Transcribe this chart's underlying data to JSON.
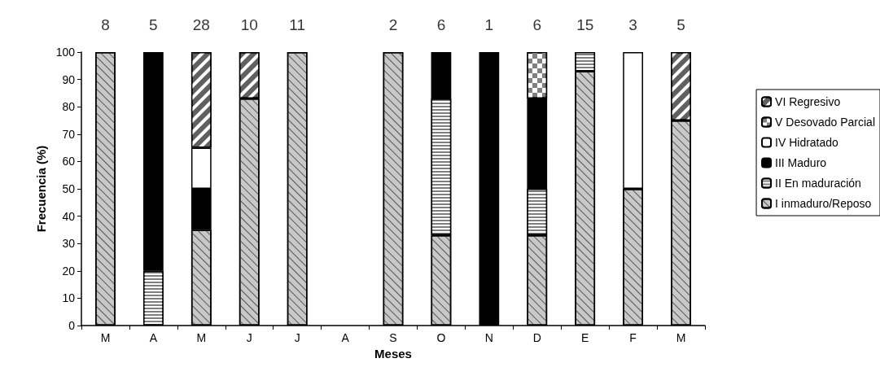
{
  "chart_data": {
    "type": "bar",
    "stacked": true,
    "xlabel": "Meses",
    "ylabel": "Frecuencia (%)",
    "categories": [
      "M",
      "A",
      "M",
      "J",
      "J",
      "A",
      "S",
      "O",
      "N",
      "D",
      "E",
      "F",
      "M"
    ],
    "annotations": [
      "8",
      "5",
      "28",
      "10",
      "11",
      "2",
      "6",
      "1",
      "6",
      "15",
      "3",
      "5"
    ],
    "series": [
      {
        "name": "I inmaduro/Reposo",
        "color": "#c8c8c8",
        "values": [
          100,
          null,
          35,
          83,
          100,
          null,
          100,
          33,
          null,
          33,
          93,
          50,
          75
        ]
      },
      {
        "name": "II En maduración",
        "color": "#7f7f7f",
        "values": [
          null,
          20,
          null,
          null,
          null,
          null,
          null,
          50,
          null,
          17,
          7,
          null,
          null
        ]
      },
      {
        "name": "III Maduro",
        "color": "#000000",
        "values": [
          null,
          80,
          15,
          null,
          null,
          null,
          null,
          17,
          100,
          33,
          null,
          null,
          null
        ]
      },
      {
        "name": "IV Hidratado",
        "color": "#ffffff",
        "values": [
          null,
          null,
          15,
          null,
          null,
          null,
          null,
          null,
          null,
          null,
          null,
          50,
          null
        ]
      },
      {
        "name": "V Desovado Parcial",
        "color": "#808080",
        "values": [
          null,
          null,
          null,
          null,
          null,
          null,
          null,
          null,
          null,
          17,
          null,
          null,
          null
        ]
      },
      {
        "name": "VI Regresivo",
        "color": "#606060",
        "values": [
          null,
          null,
          35,
          17,
          null,
          null,
          null,
          null,
          null,
          null,
          null,
          null,
          25
        ]
      }
    ],
    "ylim": [
      0,
      100
    ],
    "yticks": [
      0,
      10,
      20,
      30,
      40,
      50,
      60,
      70,
      80,
      90,
      100
    ],
    "grid": false,
    "legend": "right"
  }
}
